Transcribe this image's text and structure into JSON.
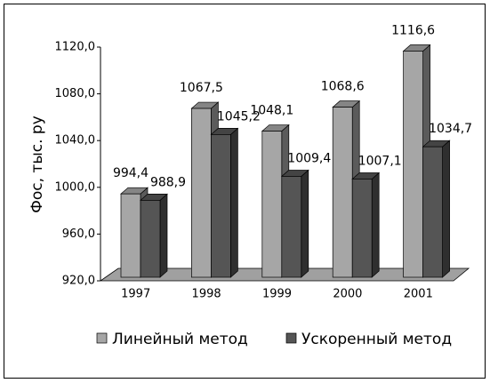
{
  "chart_data": {
    "type": "bar3d",
    "y_label": "Фос, тыс. ру",
    "categories": [
      "1997",
      "1998",
      "1999",
      "2000",
      "2001"
    ],
    "series": [
      {
        "name": "Линейный метод",
        "color": "#a6a6a6",
        "values": [
          994.4,
          1067.5,
          1048.1,
          1068.6,
          1116.6
        ],
        "value_labels": [
          "994,4",
          "1067,5",
          "1048,1",
          "1068,6",
          "1116,6"
        ]
      },
      {
        "name": "Ускоренный метод",
        "color": "#555555",
        "values": [
          988.9,
          1045.2,
          1009.4,
          1007.1,
          1034.7
        ],
        "value_labels": [
          "988,9",
          "1045,2",
          "1009,4",
          "1007,1",
          "1034,7"
        ]
      }
    ],
    "ylim": [
      920,
      1120
    ],
    "yticks": [
      {
        "value": 920,
        "label": "920,0"
      },
      {
        "value": 960,
        "label": "960,0"
      },
      {
        "value": 1000,
        "label": "1000,0"
      },
      {
        "value": 1040,
        "label": "1040,0"
      },
      {
        "value": 1080,
        "label": "1080,0"
      },
      {
        "value": 1120,
        "label": "1120,0"
      }
    ],
    "legend": "bottom"
  }
}
